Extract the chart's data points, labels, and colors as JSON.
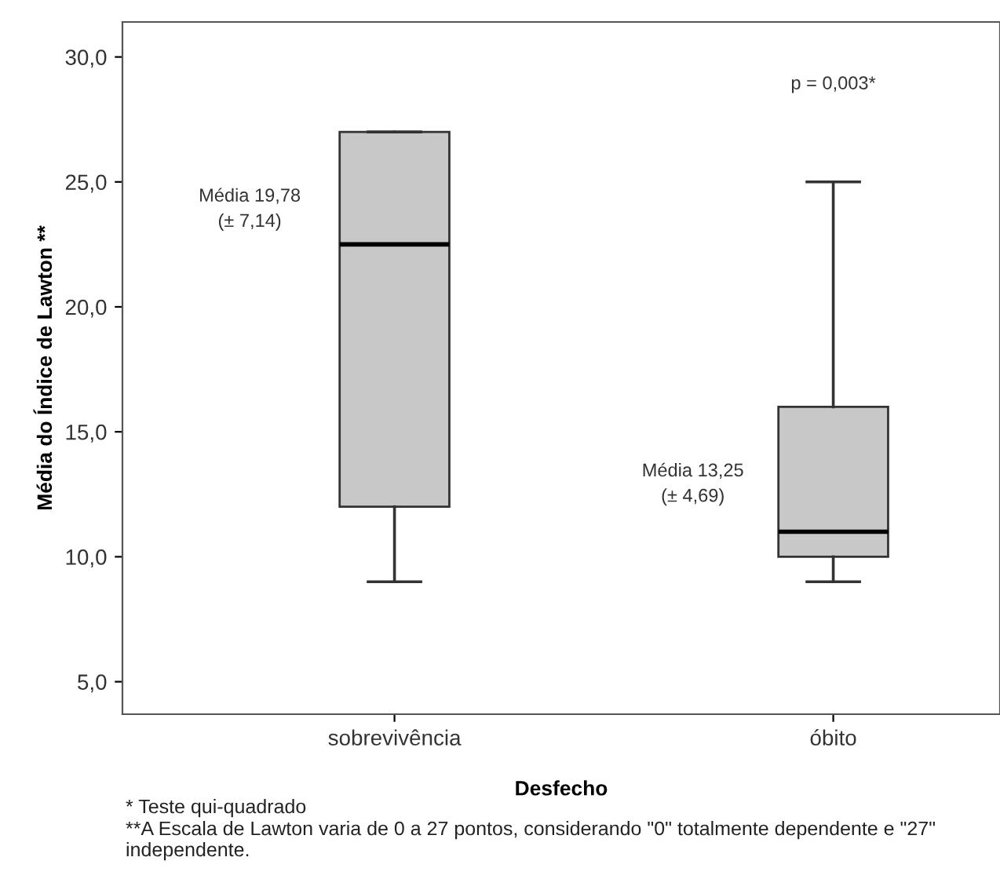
{
  "chart_data": {
    "type": "box",
    "xlabel": "Desfecho",
    "ylabel": "Média do Índice de Lawton **",
    "categories": [
      "sobrevivência",
      "óbito"
    ],
    "boxes": [
      {
        "low": 9,
        "q1": 12,
        "median": 22.5,
        "q3": 27,
        "high": 27
      },
      {
        "low": 9,
        "q1": 10,
        "median": 11,
        "q3": 16,
        "high": 25
      }
    ],
    "color": "#c8c8c8",
    "ylim": [
      3.7,
      31.4
    ],
    "yticks": [
      {
        "value": 5,
        "label": "5,0"
      },
      {
        "value": 10,
        "label": "10,0"
      },
      {
        "value": 15,
        "label": "15,0"
      },
      {
        "value": 20,
        "label": "20,0"
      },
      {
        "value": 25,
        "label": "25,0"
      },
      {
        "value": 30,
        "label": "30,0"
      }
    ],
    "grid": false,
    "annotations": [
      "Média 19,78\n(± 7,14)",
      "Média 13,25\n(± 4,69)",
      "p = 0,003*",
      "* Teste qui-quadrado",
      "**A Escala de Lawton varia de 0 a 27 pontos, considerando \"0\" totalmente dependente e \"27\" independente."
    ]
  }
}
